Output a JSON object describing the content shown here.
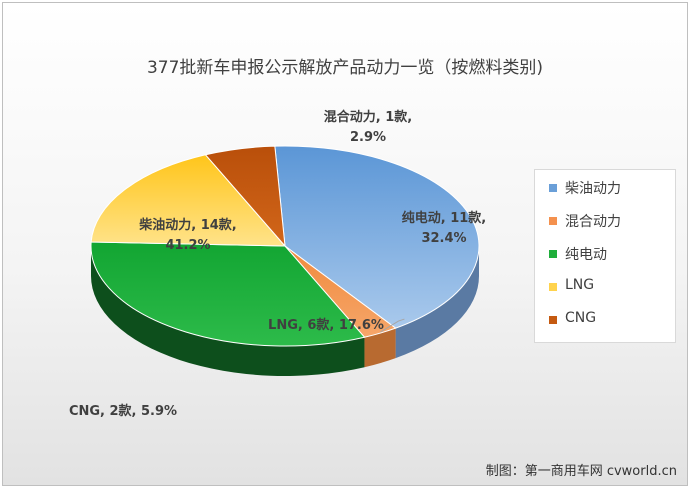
{
  "chart_data": {
    "type": "pie",
    "title": "377批新车申报公示解放产品动力一览（按燃料类别)",
    "categories": [
      "柴油动力",
      "混合动力",
      "纯电动",
      "LNG",
      "CNG"
    ],
    "values": [
      14,
      1,
      11,
      6,
      2
    ],
    "percentages": [
      "41.2%",
      "2.9%",
      "32.4%",
      "17.6%",
      "5.9%"
    ],
    "data_labels": [
      "柴油动力, 14款,\n41.2%",
      "混合动力, 1款,\n2.9%",
      "纯电动, 11款,\n32.4%",
      "LNG, 6款, 17.6%",
      "CNG, 2款, 5.9%"
    ],
    "colors": [
      "#6a9fd8",
      "#f4914e",
      "#1fae3b",
      "#ffd34d",
      "#c55a11"
    ],
    "legend_position": "right",
    "style": "3d-pie"
  },
  "credit": "制图：第一商用车网 cvworld.cn"
}
